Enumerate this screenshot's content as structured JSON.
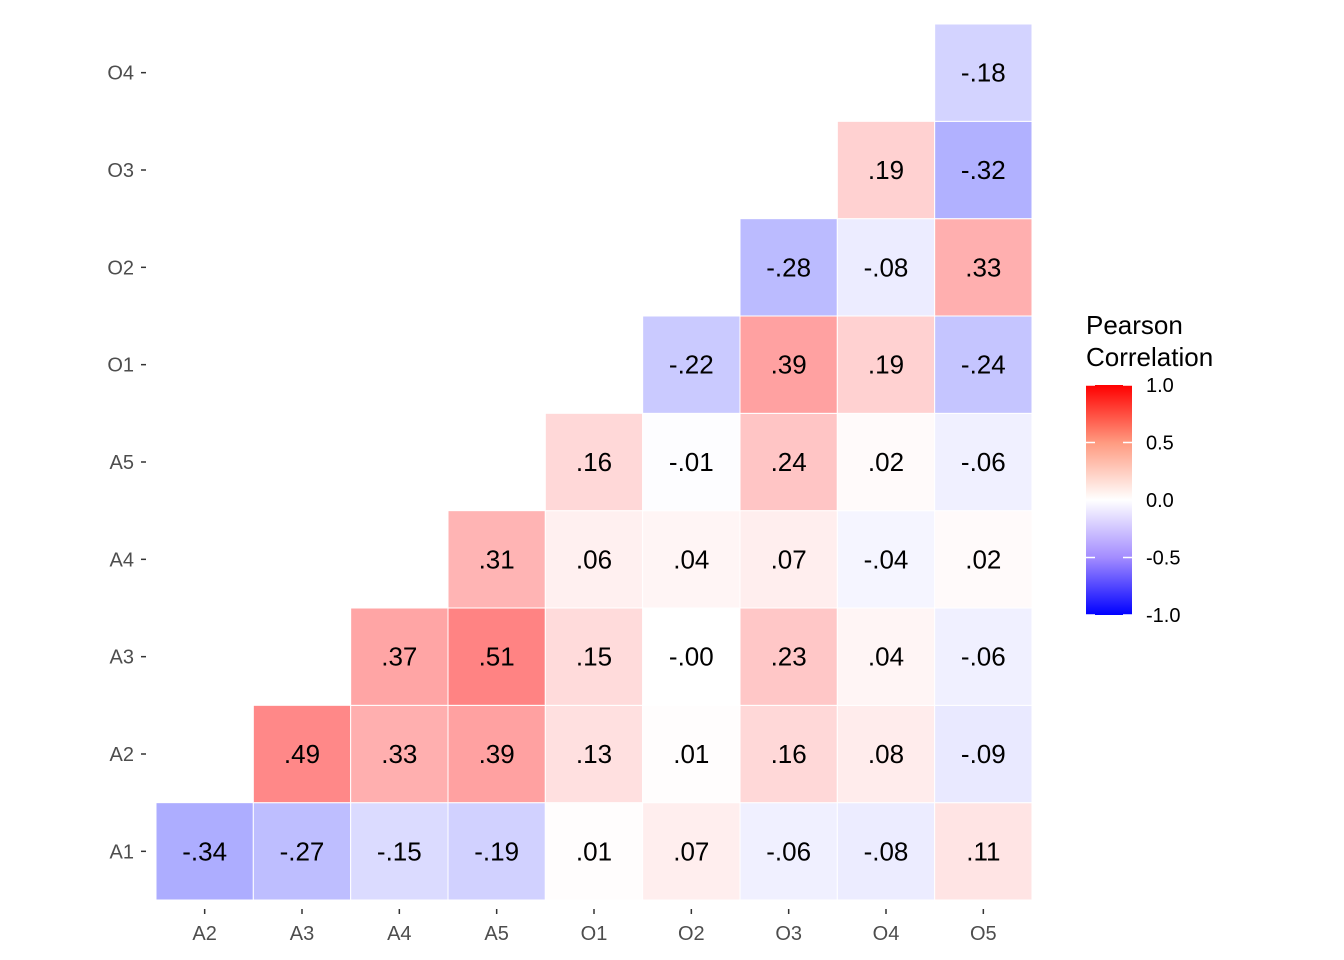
{
  "chart_data": {
    "type": "heatmap",
    "title": "",
    "xlabel": "",
    "ylabel": "",
    "x_categories": [
      "A2",
      "A3",
      "A4",
      "A5",
      "O1",
      "O2",
      "O3",
      "O4",
      "O5"
    ],
    "y_categories": [
      "A1",
      "A2",
      "A3",
      "A4",
      "A5",
      "O1",
      "O2",
      "O3",
      "O4"
    ],
    "cells": [
      {
        "x": "A2",
        "y": "A1",
        "value": -0.34,
        "label": "-.34"
      },
      {
        "x": "A3",
        "y": "A1",
        "value": -0.27,
        "label": "-.27"
      },
      {
        "x": "A4",
        "y": "A1",
        "value": -0.15,
        "label": "-.15"
      },
      {
        "x": "A5",
        "y": "A1",
        "value": -0.19,
        "label": "-.19"
      },
      {
        "x": "O1",
        "y": "A1",
        "value": 0.01,
        "label": ".01"
      },
      {
        "x": "O2",
        "y": "A1",
        "value": 0.07,
        "label": ".07"
      },
      {
        "x": "O3",
        "y": "A1",
        "value": -0.06,
        "label": "-.06"
      },
      {
        "x": "O4",
        "y": "A1",
        "value": -0.08,
        "label": "-.08"
      },
      {
        "x": "O5",
        "y": "A1",
        "value": 0.11,
        "label": ".11"
      },
      {
        "x": "A3",
        "y": "A2",
        "value": 0.49,
        "label": ".49"
      },
      {
        "x": "A4",
        "y": "A2",
        "value": 0.33,
        "label": ".33"
      },
      {
        "x": "A5",
        "y": "A2",
        "value": 0.39,
        "label": ".39"
      },
      {
        "x": "O1",
        "y": "A2",
        "value": 0.13,
        "label": ".13"
      },
      {
        "x": "O2",
        "y": "A2",
        "value": 0.01,
        "label": ".01"
      },
      {
        "x": "O3",
        "y": "A2",
        "value": 0.16,
        "label": ".16"
      },
      {
        "x": "O4",
        "y": "A2",
        "value": 0.08,
        "label": ".08"
      },
      {
        "x": "O5",
        "y": "A2",
        "value": -0.09,
        "label": "-.09"
      },
      {
        "x": "A4",
        "y": "A3",
        "value": 0.37,
        "label": ".37"
      },
      {
        "x": "A5",
        "y": "A3",
        "value": 0.51,
        "label": ".51"
      },
      {
        "x": "O1",
        "y": "A3",
        "value": 0.15,
        "label": ".15"
      },
      {
        "x": "O2",
        "y": "A3",
        "value": -0.0,
        "label": "-.00"
      },
      {
        "x": "O3",
        "y": "A3",
        "value": 0.23,
        "label": ".23"
      },
      {
        "x": "O4",
        "y": "A3",
        "value": 0.04,
        "label": ".04"
      },
      {
        "x": "O5",
        "y": "A3",
        "value": -0.06,
        "label": "-.06"
      },
      {
        "x": "A5",
        "y": "A4",
        "value": 0.31,
        "label": ".31"
      },
      {
        "x": "O1",
        "y": "A4",
        "value": 0.06,
        "label": ".06"
      },
      {
        "x": "O2",
        "y": "A4",
        "value": 0.04,
        "label": ".04"
      },
      {
        "x": "O3",
        "y": "A4",
        "value": 0.07,
        "label": ".07"
      },
      {
        "x": "O4",
        "y": "A4",
        "value": -0.04,
        "label": "-.04"
      },
      {
        "x": "O5",
        "y": "A4",
        "value": 0.02,
        "label": ".02"
      },
      {
        "x": "O1",
        "y": "A5",
        "value": 0.16,
        "label": ".16"
      },
      {
        "x": "O2",
        "y": "A5",
        "value": -0.01,
        "label": "-.01"
      },
      {
        "x": "O3",
        "y": "A5",
        "value": 0.24,
        "label": ".24"
      },
      {
        "x": "O4",
        "y": "A5",
        "value": 0.02,
        "label": ".02"
      },
      {
        "x": "O5",
        "y": "A5",
        "value": -0.06,
        "label": "-.06"
      },
      {
        "x": "O2",
        "y": "O1",
        "value": -0.22,
        "label": "-.22"
      },
      {
        "x": "O3",
        "y": "O1",
        "value": 0.39,
        "label": ".39"
      },
      {
        "x": "O4",
        "y": "O1",
        "value": 0.19,
        "label": ".19"
      },
      {
        "x": "O5",
        "y": "O1",
        "value": -0.24,
        "label": "-.24"
      },
      {
        "x": "O3",
        "y": "O2",
        "value": -0.28,
        "label": "-.28"
      },
      {
        "x": "O4",
        "y": "O2",
        "value": -0.08,
        "label": "-.08"
      },
      {
        "x": "O5",
        "y": "O2",
        "value": 0.33,
        "label": ".33"
      },
      {
        "x": "O4",
        "y": "O3",
        "value": 0.19,
        "label": ".19"
      },
      {
        "x": "O5",
        "y": "O3",
        "value": -0.32,
        "label": "-.32"
      },
      {
        "x": "O5",
        "y": "O4",
        "value": -0.18,
        "label": "-.18"
      }
    ],
    "legend": {
      "title_lines": [
        "Pearson",
        "Correlation"
      ],
      "ticks": [
        1.0,
        0.5,
        0.0,
        -0.5,
        -1.0
      ],
      "tick_labels": [
        "1.0",
        "0.5",
        "0.0",
        "-0.5",
        "-1.0"
      ],
      "limits": [
        -1,
        1
      ],
      "low_color": "#0000ff",
      "mid_color": "#ffffff",
      "high_color": "#ff0000",
      "placement": "right"
    },
    "grid": false
  }
}
